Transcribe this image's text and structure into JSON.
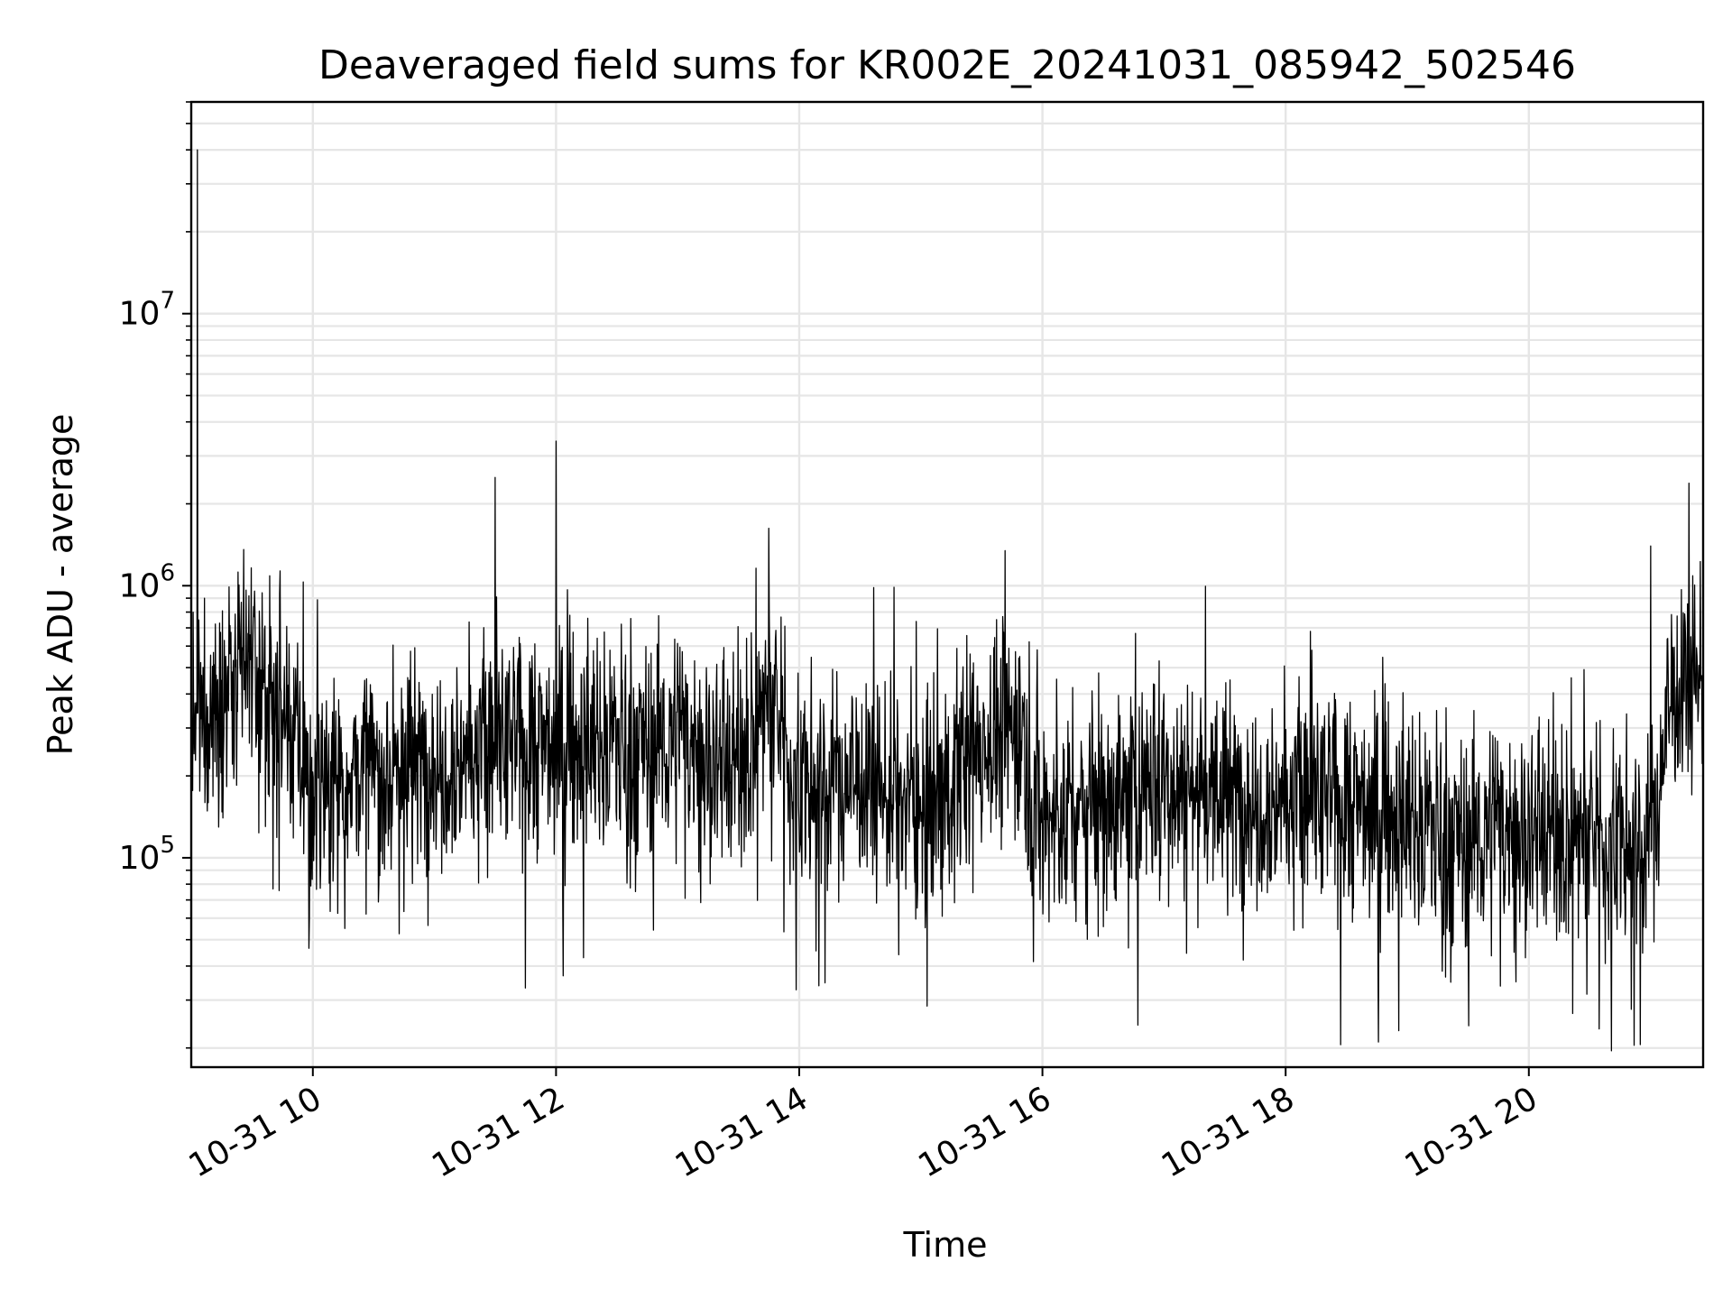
{
  "chart_data": {
    "type": "line",
    "title": "Deaveraged field sums for KR002E_20241031_085942_502546",
    "xlabel": "Time",
    "ylabel": "Peak ADU - average",
    "x_axis": {
      "type": "datetime",
      "range": [
        "2024-10-31 09:00",
        "2024-10-31 21:26"
      ],
      "ticks": [
        {
          "value": "2024-10-31 10:00",
          "label": "10-31 10"
        },
        {
          "value": "2024-10-31 12:00",
          "label": "10-31 12"
        },
        {
          "value": "2024-10-31 14:00",
          "label": "10-31 14"
        },
        {
          "value": "2024-10-31 16:00",
          "label": "10-31 16"
        },
        {
          "value": "2024-10-31 18:00",
          "label": "10-31 18"
        },
        {
          "value": "2024-10-31 20:00",
          "label": "10-31 20"
        }
      ]
    },
    "y_axis": {
      "scale": "log",
      "range": [
        17000,
        60000000
      ],
      "ticks": [
        {
          "value": 100000,
          "base": "10",
          "exp": "5"
        },
        {
          "value": 1000000,
          "base": "10",
          "exp": "6"
        },
        {
          "value": 10000000,
          "base": "10",
          "exp": "7"
        }
      ]
    },
    "grid": true,
    "line_color": "#000000",
    "grid_color": "#e6e6e6",
    "series": [
      {
        "x": [
          "2024-10-31 09:00",
          "2024-10-31 09:30",
          "2024-10-31 10:00",
          "2024-10-31 10:30",
          "2024-10-31 11:00",
          "2024-10-31 11:30",
          "2024-10-31 12:00",
          "2024-10-31 12:30",
          "2024-10-31 13:00",
          "2024-10-31 13:30",
          "2024-10-31 13:45",
          "2024-10-31 14:00",
          "2024-10-31 14:30",
          "2024-10-31 15:00",
          "2024-10-31 15:30",
          "2024-10-31 15:50",
          "2024-10-31 16:00",
          "2024-10-31 16:30",
          "2024-10-31 17:00",
          "2024-10-31 17:30",
          "2024-10-31 18:00",
          "2024-10-31 18:30",
          "2024-10-31 19:00",
          "2024-10-31 19:30",
          "2024-10-31 20:00",
          "2024-10-31 20:30",
          "2024-10-31 21:00",
          "2024-10-31 21:10",
          "2024-10-31 21:26"
        ],
        "y": [
          300000,
          500000,
          200000,
          210000,
          230000,
          260000,
          260000,
          270000,
          270000,
          220000,
          400000,
          180000,
          200000,
          150000,
          270000,
          300000,
          140000,
          160000,
          200000,
          170000,
          170000,
          160000,
          140000,
          120000,
          130000,
          120000,
          110000,
          400000,
          500000
        ]
      }
    ],
    "spikes": [
      {
        "x": "2024-10-31 09:03",
        "y": 40000000
      },
      {
        "x": "2024-10-31 11:30",
        "y": 2500000
      },
      {
        "x": "2024-10-31 12:00",
        "y": 3400000
      },
      {
        "x": "2024-10-31 21:00",
        "y": 1400000
      }
    ]
  }
}
